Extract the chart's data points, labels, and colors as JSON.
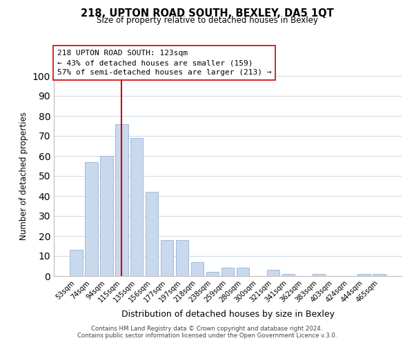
{
  "title": "218, UPTON ROAD SOUTH, BEXLEY, DA5 1QT",
  "subtitle": "Size of property relative to detached houses in Bexley",
  "xlabel": "Distribution of detached houses by size in Bexley",
  "ylabel": "Number of detached properties",
  "bar_labels": [
    "53sqm",
    "74sqm",
    "94sqm",
    "115sqm",
    "135sqm",
    "156sqm",
    "177sqm",
    "197sqm",
    "218sqm",
    "238sqm",
    "259sqm",
    "280sqm",
    "300sqm",
    "321sqm",
    "341sqm",
    "362sqm",
    "383sqm",
    "403sqm",
    "424sqm",
    "444sqm",
    "465sqm"
  ],
  "bar_values": [
    13,
    57,
    60,
    76,
    69,
    42,
    18,
    18,
    7,
    2,
    4,
    4,
    0,
    3,
    1,
    0,
    1,
    0,
    0,
    1,
    1
  ],
  "bar_color": "#c9d9ed",
  "bar_edge_color": "#a0b8d8",
  "vline_x": 3.0,
  "vline_color": "#cc0000",
  "annotation_title": "218 UPTON ROAD SOUTH: 123sqm",
  "annotation_line1": "← 43% of detached houses are smaller (159)",
  "annotation_line2": "57% of semi-detached houses are larger (213) →",
  "annotation_box_color": "#ffffff",
  "annotation_box_edge": "#cc0000",
  "ylim": [
    0,
    100
  ],
  "yticks": [
    0,
    10,
    20,
    30,
    40,
    50,
    60,
    70,
    80,
    90,
    100
  ],
  "footer1": "Contains HM Land Registry data © Crown copyright and database right 2024.",
  "footer2": "Contains public sector information licensed under the Open Government Licence v.3.0.",
  "bg_color": "#ffffff",
  "grid_color": "#d0dce8"
}
